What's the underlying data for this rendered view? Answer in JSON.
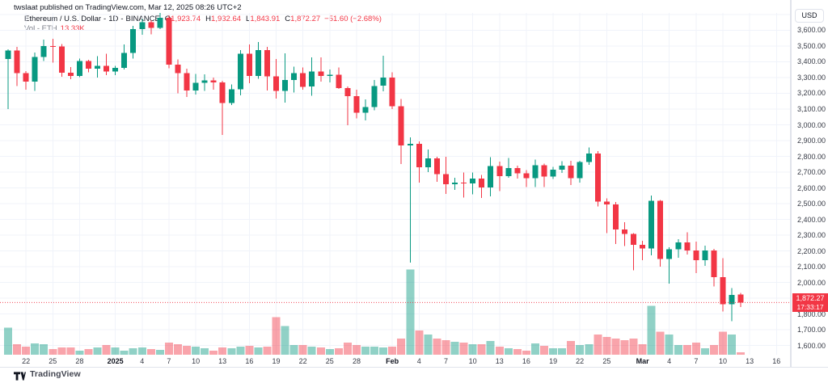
{
  "header": {
    "attribution": "twslaat published on TradingView.com, Mar 12, 2025 08:26 UTC+2"
  },
  "legend": {
    "symbol": "Ethereum / U.S. Dollar",
    "separator": "-",
    "interval": "1D",
    "exchange": "BINANCE",
    "open_label": "O",
    "open": "1,923.74",
    "high_label": "H",
    "high": "1,932.64",
    "low_label": "L",
    "low": "1,843.91",
    "close_label": "C",
    "close": "1,872.27",
    "change": "−51.60 (−2.68%)",
    "volume_label": "Vol - ETH",
    "volume_value": "13.33K"
  },
  "price_axis": {
    "currency_button": "USD",
    "labels": [
      "3,600.00",
      "3,500.00",
      "3,400.00",
      "3,300.00",
      "3,200.00",
      "3,100.00",
      "3,000.00",
      "2,900.00",
      "2,800.00",
      "2,700.00",
      "2,600.00",
      "2,500.00",
      "2,400.00",
      "2,300.00",
      "2,200.00",
      "2,100.00",
      "2,000.00",
      "1,900.00",
      "1,800.00",
      "1,700.00",
      "1,600.00"
    ],
    "top_price": 3600,
    "step": 100,
    "last_price_badge": {
      "price": "1,872.27",
      "countdown": "17:33:17"
    }
  },
  "time_axis": {
    "labels": [
      {
        "text": "22",
        "day": 2,
        "bold": false
      },
      {
        "text": "25",
        "day": 5,
        "bold": false
      },
      {
        "text": "28",
        "day": 8,
        "bold": false
      },
      {
        "text": "2025",
        "day": 12,
        "bold": true
      },
      {
        "text": "4",
        "day": 15,
        "bold": false
      },
      {
        "text": "7",
        "day": 18,
        "bold": false
      },
      {
        "text": "10",
        "day": 21,
        "bold": false
      },
      {
        "text": "13",
        "day": 24,
        "bold": false
      },
      {
        "text": "16",
        "day": 27,
        "bold": false
      },
      {
        "text": "19",
        "day": 30,
        "bold": false
      },
      {
        "text": "22",
        "day": 33,
        "bold": false
      },
      {
        "text": "25",
        "day": 36,
        "bold": false
      },
      {
        "text": "28",
        "day": 39,
        "bold": false
      },
      {
        "text": "Feb",
        "day": 43,
        "bold": true
      },
      {
        "text": "4",
        "day": 46,
        "bold": false
      },
      {
        "text": "7",
        "day": 49,
        "bold": false
      },
      {
        "text": "10",
        "day": 52,
        "bold": false
      },
      {
        "text": "13",
        "day": 55,
        "bold": false
      },
      {
        "text": "16",
        "day": 58,
        "bold": false
      },
      {
        "text": "19",
        "day": 61,
        "bold": false
      },
      {
        "text": "22",
        "day": 64,
        "bold": false
      },
      {
        "text": "25",
        "day": 67,
        "bold": false
      },
      {
        "text": "Mar",
        "day": 71,
        "bold": true
      },
      {
        "text": "4",
        "day": 74,
        "bold": false
      },
      {
        "text": "7",
        "day": 77,
        "bold": false
      },
      {
        "text": "10",
        "day": 80,
        "bold": false
      },
      {
        "text": "13",
        "day": 83,
        "bold": false
      },
      {
        "text": "16",
        "day": 86,
        "bold": false
      }
    ]
  },
  "footer": {
    "brand": "TradingView"
  },
  "colors": {
    "up": "#089981",
    "down": "#f23645",
    "vol_up": "rgba(8,153,129,0.45)",
    "vol_down": "rgba(242,54,69,0.45)",
    "grid": "#f0f3fa",
    "frame": "#e0e3eb",
    "axis_text": "#363a45",
    "text_dark": "#131722",
    "text_gray": "#787b86",
    "badge_bg": "#f23645",
    "last_price_line": "#f23645"
  },
  "chart_data": {
    "type": "candlestick+volume",
    "title": "Ethereum / U.S. Dollar",
    "symbol": "ETHUSD",
    "exchange": "BINANCE",
    "interval": "1D",
    "currency": "USD",
    "grid": true,
    "legend_position": "top-left",
    "ylim": [
      1546,
      3792
    ],
    "price_tick_step": 100,
    "volume_unit": "K ETH",
    "last": {
      "open": 1923.74,
      "high": 1932.64,
      "low": 1843.91,
      "close": 1872.27,
      "change": -51.6,
      "change_pct": -2.68,
      "volume_k": 13.33,
      "countdown": "17:33:17"
    },
    "columns": [
      "date",
      "open",
      "high",
      "low",
      "close",
      "volume_k"
    ],
    "candles": [
      [
        "Dec 20",
        3417,
        3480,
        3101,
        3472,
        140
      ],
      [
        "Dec 21",
        3472,
        3495,
        3247,
        3327,
        55
      ],
      [
        "Dec 22",
        3327,
        3341,
        3222,
        3275,
        42
      ],
      [
        "Dec 23",
        3275,
        3459,
        3216,
        3430,
        59
      ],
      [
        "Dec 24",
        3430,
        3540,
        3405,
        3500,
        55
      ],
      [
        "Dec 25",
        3500,
        3545,
        3395,
        3497,
        29
      ],
      [
        "Dec 26",
        3497,
        3513,
        3304,
        3331,
        38
      ],
      [
        "Dec 27",
        3331,
        3367,
        3290,
        3310,
        38
      ],
      [
        "Dec 28",
        3310,
        3420,
        3302,
        3404,
        21
      ],
      [
        "Dec 29",
        3404,
        3413,
        3333,
        3356,
        29
      ],
      [
        "Dec 30",
        3356,
        3436,
        3300,
        3375,
        38
      ],
      [
        "Dec 31",
        3375,
        3451,
        3316,
        3337,
        50
      ],
      [
        "Jan 1",
        3337,
        3374,
        3314,
        3360,
        38
      ],
      [
        "Jan 2",
        3360,
        3509,
        3352,
        3456,
        21
      ],
      [
        "Jan 3",
        3456,
        3629,
        3420,
        3608,
        34
      ],
      [
        "Jan 4",
        3608,
        3672,
        3572,
        3650,
        38
      ],
      [
        "Jan 5",
        3650,
        3663,
        3575,
        3615,
        29
      ],
      [
        "Jan 6",
        3615,
        3710,
        3607,
        3680,
        25
      ],
      [
        "Jan 7",
        3680,
        3695,
        3358,
        3381,
        63
      ],
      [
        "Jan 8",
        3381,
        3415,
        3200,
        3327,
        55
      ],
      [
        "Jan 9",
        3327,
        3357,
        3177,
        3219,
        46
      ],
      [
        "Jan 10",
        3219,
        3322,
        3193,
        3267,
        42
      ],
      [
        "Jan 11",
        3267,
        3319,
        3215,
        3283,
        34
      ],
      [
        "Jan 12",
        3283,
        3299,
        3224,
        3268,
        21
      ],
      [
        "Jan 13",
        3268,
        3280,
        2936,
        3138,
        38
      ],
      [
        "Jan 14",
        3138,
        3256,
        3125,
        3225,
        34
      ],
      [
        "Jan 15",
        3225,
        3473,
        3186,
        3451,
        42
      ],
      [
        "Jan 16",
        3451,
        3510,
        3265,
        3309,
        46
      ],
      [
        "Jan 17",
        3309,
        3525,
        3292,
        3474,
        38
      ],
      [
        "Jan 18",
        3474,
        3494,
        3218,
        3307,
        42
      ],
      [
        "Jan 19",
        3307,
        3418,
        3167,
        3215,
        193
      ],
      [
        "Jan 20",
        3215,
        3453,
        3142,
        3284,
        147
      ],
      [
        "Jan 21",
        3284,
        3369,
        3204,
        3327,
        50
      ],
      [
        "Jan 22",
        3327,
        3365,
        3222,
        3242,
        50
      ],
      [
        "Jan 23",
        3242,
        3429,
        3185,
        3338,
        42
      ],
      [
        "Jan 24",
        3338,
        3428,
        3275,
        3310,
        38
      ],
      [
        "Jan 25",
        3310,
        3350,
        3268,
        3318,
        29
      ],
      [
        "Jan 26",
        3318,
        3363,
        3228,
        3232,
        34
      ],
      [
        "Jan 27",
        3232,
        3243,
        2998,
        3183,
        63
      ],
      [
        "Jan 28",
        3183,
        3222,
        3040,
        3077,
        50
      ],
      [
        "Jan 29",
        3077,
        3160,
        3029,
        3113,
        42
      ],
      [
        "Jan 30",
        3113,
        3284,
        3093,
        3247,
        42
      ],
      [
        "Jan 31",
        3247,
        3437,
        3213,
        3300,
        38
      ],
      [
        "Feb 1",
        3300,
        3332,
        3101,
        3118,
        42
      ],
      [
        "Feb 2",
        3118,
        3165,
        2750,
        2869,
        84
      ],
      [
        "Feb 3",
        2869,
        2921,
        2125,
        2879,
        440
      ],
      [
        "Feb 4",
        2879,
        2895,
        2632,
        2731,
        126
      ],
      [
        "Feb 5",
        2731,
        2843,
        2699,
        2788,
        105
      ],
      [
        "Feb 6",
        2788,
        2798,
        2638,
        2686,
        84
      ],
      [
        "Feb 7",
        2686,
        2797,
        2562,
        2622,
        76
      ],
      [
        "Feb 8",
        2622,
        2665,
        2588,
        2632,
        67
      ],
      [
        "Feb 9",
        2632,
        2698,
        2537,
        2627,
        63
      ],
      [
        "Feb 10",
        2627,
        2698,
        2559,
        2659,
        55
      ],
      [
        "Feb 11",
        2659,
        2681,
        2536,
        2603,
        55
      ],
      [
        "Feb 12",
        2603,
        2795,
        2546,
        2738,
        71
      ],
      [
        "Feb 13",
        2738,
        2766,
        2580,
        2675,
        42
      ],
      [
        "Feb 14",
        2675,
        2790,
        2664,
        2726,
        34
      ],
      [
        "Feb 15",
        2726,
        2740,
        2660,
        2693,
        29
      ],
      [
        "Feb 16",
        2693,
        2713,
        2604,
        2662,
        21
      ],
      [
        "Feb 17",
        2662,
        2780,
        2605,
        2743,
        59
      ],
      [
        "Feb 18",
        2743,
        2754,
        2605,
        2671,
        46
      ],
      [
        "Feb 19",
        2671,
        2732,
        2655,
        2715,
        34
      ],
      [
        "Feb 20",
        2715,
        2770,
        2695,
        2741,
        34
      ],
      [
        "Feb 21",
        2741,
        2771,
        2617,
        2662,
        71
      ],
      [
        "Feb 22",
        2662,
        2771,
        2633,
        2764,
        50
      ],
      [
        "Feb 23",
        2764,
        2856,
        2746,
        2818,
        55
      ],
      [
        "Feb 24",
        2818,
        2833,
        2481,
        2512,
        105
      ],
      [
        "Feb 25",
        2512,
        2533,
        2313,
        2495,
        92
      ],
      [
        "Feb 26",
        2495,
        2510,
        2244,
        2336,
        84
      ],
      [
        "Feb 27",
        2336,
        2381,
        2230,
        2308,
        76
      ],
      [
        "Feb 28",
        2308,
        2313,
        2076,
        2237,
        84
      ],
      [
        "Mar 1",
        2237,
        2265,
        2142,
        2216,
        55
      ],
      [
        "Mar 2",
        2216,
        2550,
        2172,
        2518,
        252
      ],
      [
        "Mar 3",
        2518,
        2523,
        2100,
        2149,
        118
      ],
      [
        "Mar 4",
        2149,
        2222,
        1993,
        2211,
        105
      ],
      [
        "Mar 5",
        2211,
        2273,
        2155,
        2254,
        50
      ],
      [
        "Mar 6",
        2254,
        2319,
        2176,
        2202,
        50
      ],
      [
        "Mar 7",
        2202,
        2258,
        2060,
        2141,
        63
      ],
      [
        "Mar 8",
        2141,
        2234,
        2105,
        2203,
        34
      ],
      [
        "Mar 9",
        2203,
        2212,
        1975,
        2033,
        50
      ],
      [
        "Mar 10",
        2033,
        2153,
        1815,
        1862,
        118
      ],
      [
        "Mar 11",
        1862,
        1963,
        1754,
        1921,
        105
      ],
      [
        "Mar 12",
        1923.74,
        1932.64,
        1843.91,
        1872.27,
        13.33
      ]
    ]
  }
}
